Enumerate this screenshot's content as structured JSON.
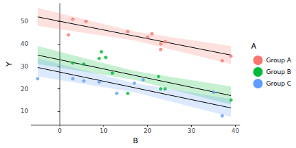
{
  "chart_data": {
    "type": "scatter",
    "x_label": "B",
    "y_label": "Y",
    "legend_title": "A",
    "legend": "right",
    "grid": false,
    "xlim": [
      -6.5,
      41
    ],
    "xticks": [
      0,
      10,
      20,
      30,
      40
    ],
    "ylim": [
      4,
      58
    ],
    "yticks": [
      10,
      20,
      30,
      40,
      50
    ],
    "series": [
      {
        "name": "Group A",
        "color": "#F8766D",
        "x": [
          2,
          3,
          6,
          15.5,
          20,
          21,
          23,
          23,
          24,
          37,
          39
        ],
        "values": [
          44,
          51,
          50,
          45.5,
          43,
          44.5,
          37.5,
          40,
          41,
          32.5,
          34.5
        ],
        "fit_x": [
          -5,
          17,
          39
        ],
        "fit_y": [
          52,
          43.5,
          35
        ],
        "fit_lower": [
          48,
          41.5,
          31
        ],
        "fit_upper": [
          56,
          45.5,
          39
        ]
      },
      {
        "name": "Group B",
        "color": "#00BA38",
        "x": [
          3,
          5.5,
          9,
          9.5,
          10.5,
          12,
          15.5,
          22.5,
          23,
          24,
          39
        ],
        "values": [
          31.5,
          31,
          33.5,
          36.5,
          34,
          27,
          18,
          25.5,
          20,
          20,
          15
        ],
        "fit_x": [
          -5,
          17,
          39
        ],
        "fit_y": [
          35,
          26,
          17
        ],
        "fit_lower": [
          31,
          24,
          13
        ],
        "fit_upper": [
          39,
          28,
          21
        ]
      },
      {
        "name": "Group C",
        "color": "#619CFF",
        "x": [
          -5,
          3,
          5.5,
          9,
          13,
          17,
          19,
          35,
          37
        ],
        "values": [
          24.5,
          24.5,
          23.5,
          23,
          18,
          22.5,
          24,
          18.5,
          8
        ],
        "fit_x": [
          -5,
          17,
          39
        ],
        "fit_y": [
          29.5,
          20.5,
          11.5
        ],
        "fit_lower": [
          25.5,
          18.5,
          7.5
        ],
        "fit_upper": [
          33.5,
          22.5,
          15.5
        ]
      }
    ]
  }
}
